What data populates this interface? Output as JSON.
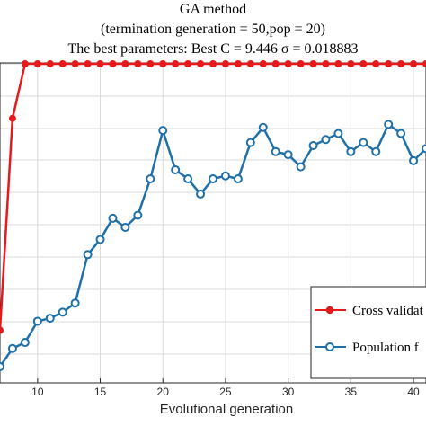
{
  "titles": {
    "line1": "GA method",
    "line2": "(termination generation = 50,pop = 20)",
    "line3": "The best parameters: Best C = 9.446  σ = 0.018883"
  },
  "chart_data": {
    "type": "line",
    "xlabel": "Evolutional generation",
    "ylabel": "",
    "x_ticks": [
      10,
      15,
      20,
      25,
      30,
      35,
      40
    ],
    "xlim": [
      7,
      41
    ],
    "grid": true,
    "legend_position": "bottom-right",
    "series": [
      {
        "name": "Cross validat",
        "color": "#e41a1c",
        "marker": "filled-circle",
        "x": [
          7,
          8,
          9,
          10,
          11,
          12,
          13,
          14,
          15,
          16,
          17,
          18,
          19,
          20,
          21,
          22,
          23,
          24,
          25,
          26,
          27,
          28,
          29,
          30,
          31,
          32,
          33,
          34,
          35,
          36,
          37,
          38,
          39,
          40,
          41
        ],
        "y": [
          0.12,
          0.82,
          1.0,
          1.0,
          1.0,
          1.0,
          1.0,
          1.0,
          1.0,
          1.0,
          1.0,
          1.0,
          1.0,
          1.0,
          1.0,
          1.0,
          1.0,
          1.0,
          1.0,
          1.0,
          1.0,
          1.0,
          1.0,
          1.0,
          1.0,
          1.0,
          1.0,
          1.0,
          1.0,
          1.0,
          1.0,
          1.0,
          1.0,
          1.0,
          1.0
        ]
      },
      {
        "name": "Population f",
        "color": "#1f6fa8",
        "marker": "open-circle",
        "x": [
          7,
          8,
          9,
          10,
          11,
          12,
          13,
          14,
          15,
          16,
          17,
          18,
          19,
          20,
          21,
          22,
          23,
          24,
          25,
          26,
          27,
          28,
          29,
          30,
          31,
          32,
          33,
          34,
          35,
          36,
          37,
          38,
          39,
          40,
          41
        ],
        "y": [
          0.0,
          0.06,
          0.08,
          0.15,
          0.16,
          0.18,
          0.21,
          0.37,
          0.42,
          0.49,
          0.46,
          0.5,
          0.62,
          0.78,
          0.65,
          0.62,
          0.57,
          0.62,
          0.63,
          0.62,
          0.74,
          0.79,
          0.71,
          0.7,
          0.66,
          0.73,
          0.75,
          0.77,
          0.71,
          0.74,
          0.71,
          0.8,
          0.77,
          0.68,
          0.72
        ]
      }
    ]
  }
}
